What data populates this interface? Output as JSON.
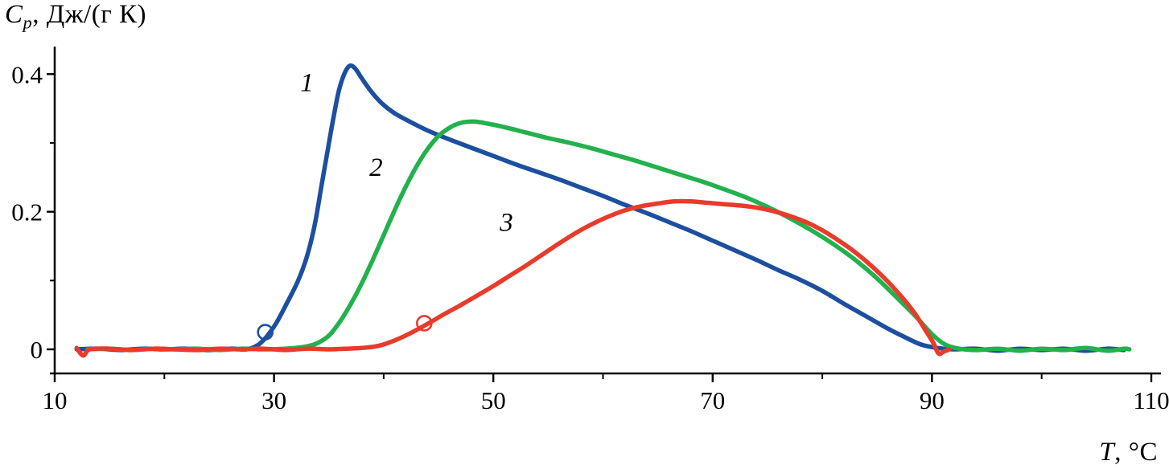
{
  "chart_data": {
    "type": "line",
    "title": "",
    "ylabel": "Cp, Дж/(г К)",
    "ylabel_parts": {
      "sym": "C",
      "sub": "p",
      "rest": ", Дж/(г К)"
    },
    "xlabel": "T, °C",
    "xlabel_parts": {
      "sym": "T",
      "rest": ", °C"
    },
    "xlim": [
      10,
      110
    ],
    "ylim": [
      -0.035,
      0.44
    ],
    "xticks": [
      10,
      30,
      50,
      70,
      90,
      110
    ],
    "xtick_labels": [
      "10",
      "30",
      "50",
      "70",
      "90",
      "110"
    ],
    "xticks_minor": [
      20,
      40,
      60,
      80,
      100
    ],
    "yticks": [
      0,
      0.2,
      0.4
    ],
    "ytick_labels": [
      "0",
      "0.2",
      "0.4"
    ],
    "yticks_minor": [
      0.1,
      0.3
    ],
    "grid": false,
    "legend_position": "none",
    "axis_color": "#000000",
    "series": [
      {
        "name": "1",
        "color": "#1d4f9f",
        "points": [
          [
            12,
            0
          ],
          [
            14,
            0.001
          ],
          [
            16,
            -0.001
          ],
          [
            18,
            0.001
          ],
          [
            20,
            0
          ],
          [
            22,
            0.001
          ],
          [
            24,
            -0.001
          ],
          [
            26,
            0.001
          ],
          [
            27.5,
            0
          ],
          [
            28.5,
            0.006
          ],
          [
            29.3,
            0.018
          ],
          [
            30.2,
            0.038
          ],
          [
            31.2,
            0.068
          ],
          [
            32.2,
            0.1
          ],
          [
            33,
            0.135
          ],
          [
            33.7,
            0.18
          ],
          [
            34.3,
            0.235
          ],
          [
            34.9,
            0.29
          ],
          [
            35.4,
            0.335
          ],
          [
            35.9,
            0.375
          ],
          [
            36.4,
            0.4
          ],
          [
            36.9,
            0.412
          ],
          [
            37.4,
            0.408
          ],
          [
            38,
            0.394
          ],
          [
            38.8,
            0.376
          ],
          [
            39.8,
            0.358
          ],
          [
            41,
            0.343
          ],
          [
            42.5,
            0.33
          ],
          [
            44,
            0.318
          ],
          [
            46,
            0.305
          ],
          [
            48,
            0.293
          ],
          [
            50,
            0.281
          ],
          [
            52,
            0.269
          ],
          [
            54,
            0.258
          ],
          [
            56,
            0.247
          ],
          [
            58,
            0.235
          ],
          [
            60,
            0.223
          ],
          [
            62,
            0.21
          ],
          [
            64,
            0.198
          ],
          [
            66,
            0.185
          ],
          [
            68,
            0.172
          ],
          [
            70,
            0.158
          ],
          [
            72,
            0.144
          ],
          [
            74,
            0.13
          ],
          [
            76,
            0.115
          ],
          [
            78,
            0.101
          ],
          [
            80,
            0.085
          ],
          [
            82,
            0.066
          ],
          [
            84,
            0.048
          ],
          [
            86,
            0.03
          ],
          [
            87.5,
            0.018
          ],
          [
            89,
            0.007
          ],
          [
            90.5,
            0.002
          ],
          [
            92,
            0
          ],
          [
            94,
            0.001
          ],
          [
            96,
            -0.002
          ],
          [
            98,
            0.001
          ],
          [
            100,
            -0.001
          ],
          [
            102,
            0.001
          ],
          [
            104,
            -0.002
          ],
          [
            106,
            0.001
          ],
          [
            107.5,
            -0.001
          ]
        ]
      },
      {
        "name": "2",
        "color": "#23b14d",
        "points": [
          [
            13,
            0
          ],
          [
            15,
            0.001
          ],
          [
            17,
            -0.001
          ],
          [
            19,
            0.001
          ],
          [
            21,
            0
          ],
          [
            23,
            0.001
          ],
          [
            25,
            -0.001
          ],
          [
            27,
            0.001
          ],
          [
            29,
            0
          ],
          [
            31,
            0.001
          ],
          [
            32.5,
            0.003
          ],
          [
            33.8,
            0.008
          ],
          [
            35,
            0.02
          ],
          [
            36,
            0.04
          ],
          [
            37,
            0.066
          ],
          [
            38,
            0.096
          ],
          [
            39,
            0.13
          ],
          [
            40,
            0.166
          ],
          [
            41,
            0.202
          ],
          [
            42,
            0.236
          ],
          [
            43,
            0.266
          ],
          [
            44,
            0.291
          ],
          [
            45,
            0.31
          ],
          [
            46,
            0.322
          ],
          [
            47,
            0.329
          ],
          [
            48.2,
            0.331
          ],
          [
            49.5,
            0.328
          ],
          [
            51,
            0.323
          ],
          [
            53,
            0.315
          ],
          [
            55,
            0.307
          ],
          [
            57,
            0.3
          ],
          [
            59,
            0.292
          ],
          [
            61,
            0.283
          ],
          [
            63,
            0.274
          ],
          [
            65,
            0.264
          ],
          [
            67,
            0.254
          ],
          [
            69,
            0.244
          ],
          [
            71,
            0.233
          ],
          [
            73,
            0.221
          ],
          [
            75,
            0.207
          ],
          [
            77,
            0.191
          ],
          [
            79,
            0.173
          ],
          [
            81,
            0.153
          ],
          [
            83,
            0.13
          ],
          [
            85,
            0.103
          ],
          [
            87,
            0.072
          ],
          [
            88.5,
            0.048
          ],
          [
            90,
            0.022
          ],
          [
            91.2,
            0.007
          ],
          [
            92.5,
            0.001
          ],
          [
            94,
            -0.001
          ],
          [
            96,
            0.001
          ],
          [
            98,
            -0.002
          ],
          [
            100,
            0.001
          ],
          [
            102,
            -0.001
          ],
          [
            104,
            0.002
          ],
          [
            106,
            -0.002
          ],
          [
            107.5,
            0.001
          ],
          [
            108,
            0
          ]
        ]
      },
      {
        "name": "3",
        "color": "#e83b2c",
        "points": [
          [
            12,
            0.002
          ],
          [
            12.6,
            -0.009
          ],
          [
            13.2,
            0
          ],
          [
            15,
            0.001
          ],
          [
            17,
            -0.001
          ],
          [
            19,
            0.001
          ],
          [
            21,
            0
          ],
          [
            23,
            -0.001
          ],
          [
            25,
            0.001
          ],
          [
            27,
            0
          ],
          [
            29,
            0.001
          ],
          [
            31,
            -0.001
          ],
          [
            33,
            0.001
          ],
          [
            35,
            0
          ],
          [
            36.5,
            0.001
          ],
          [
            38,
            0.002
          ],
          [
            39.5,
            0.005
          ],
          [
            41,
            0.013
          ],
          [
            42.5,
            0.024
          ],
          [
            44,
            0.037
          ],
          [
            45.5,
            0.051
          ],
          [
            47,
            0.064
          ],
          [
            48.5,
            0.078
          ],
          [
            50,
            0.092
          ],
          [
            51.5,
            0.107
          ],
          [
            53,
            0.122
          ],
          [
            54.5,
            0.138
          ],
          [
            56,
            0.154
          ],
          [
            57.5,
            0.169
          ],
          [
            59,
            0.182
          ],
          [
            60.5,
            0.193
          ],
          [
            62,
            0.202
          ],
          [
            63.5,
            0.208
          ],
          [
            65,
            0.212
          ],
          [
            66.5,
            0.215
          ],
          [
            68,
            0.215
          ],
          [
            69.5,
            0.213
          ],
          [
            71,
            0.211
          ],
          [
            72.5,
            0.209
          ],
          [
            74,
            0.206
          ],
          [
            75.5,
            0.201
          ],
          [
            77,
            0.194
          ],
          [
            78.5,
            0.185
          ],
          [
            80,
            0.173
          ],
          [
            81.5,
            0.158
          ],
          [
            83,
            0.141
          ],
          [
            84.5,
            0.121
          ],
          [
            86,
            0.098
          ],
          [
            87.3,
            0.075
          ],
          [
            88.4,
            0.053
          ],
          [
            89.4,
            0.028
          ],
          [
            90.1,
            0.01
          ],
          [
            90.6,
            -0.006
          ],
          [
            91.1,
            -0.003
          ],
          [
            91.6,
            0
          ]
        ]
      }
    ],
    "curve_labels": [
      {
        "text": "1",
        "x": 33.0,
        "y": 0.375,
        "color": "#000000"
      },
      {
        "text": "2",
        "x": 39.3,
        "y": 0.252,
        "color": "#000000"
      },
      {
        "text": "3",
        "x": 51.2,
        "y": 0.172,
        "color": "#000000"
      }
    ],
    "onset_markers": [
      {
        "series": "1",
        "x": 29.2,
        "y": 0.025,
        "color": "#1d4f9f"
      },
      {
        "series": "3",
        "x": 43.7,
        "y": 0.038,
        "color": "#e83b2c"
      }
    ]
  }
}
